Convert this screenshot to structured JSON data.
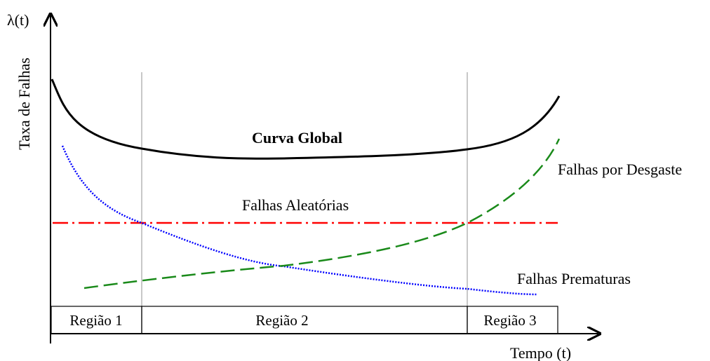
{
  "axes": {
    "y_symbol": "λ(t)",
    "y_label": "Taxa de Falhas",
    "x_label": "Tempo (t)"
  },
  "curves": {
    "global": "Curva Global",
    "wear_out": "Falhas por Desgaste",
    "random": "Falhas Aleatórias",
    "premature": "Falhas Prematuras"
  },
  "regions": [
    "Região 1",
    "Região 2",
    "Região 3"
  ],
  "colors": {
    "global": "#000000",
    "wear_out": "#1a8a1a",
    "random": "#ff0000",
    "premature": "#0000ff"
  }
}
